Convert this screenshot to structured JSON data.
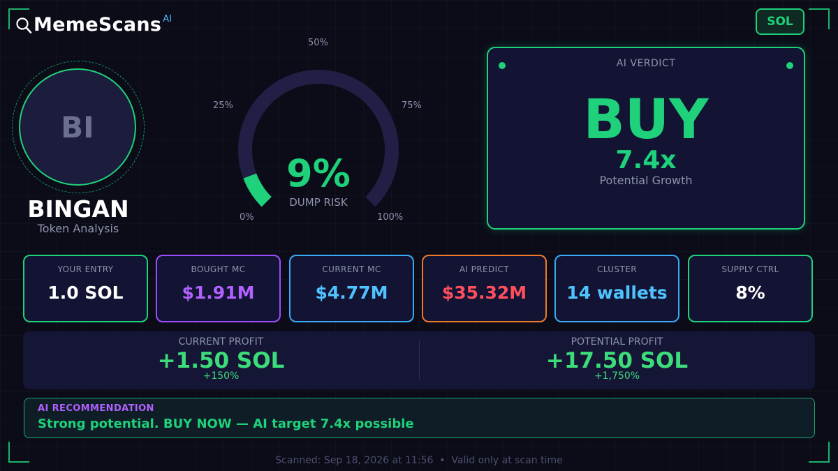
{
  "brand": {
    "name": "MemeScans",
    "suffix": "AI",
    "icon": "magnifier-icon"
  },
  "chain": "SOL",
  "token": {
    "initials": "BI",
    "name": "BINGAN",
    "subtitle": "Token Analysis"
  },
  "gauge": {
    "value_text": "9%",
    "value": 9,
    "label": "DUMP RISK",
    "ticks": [
      "0%",
      "25%",
      "50%",
      "75%",
      "100%"
    ],
    "fill_color": "#1fd17a",
    "track_color": "#211f45"
  },
  "verdict": {
    "label": "AI VERDICT",
    "value": "BUY",
    "multiplier": "7.4x",
    "subtitle": "Potential Growth"
  },
  "stats": [
    {
      "label": "YOUR ENTRY",
      "value": "1.0 SOL",
      "color": "#ffffff",
      "border": "#1fd17a"
    },
    {
      "label": "BOUGHT MC",
      "value": "$1.91M",
      "color": "#b061ff",
      "border": "#9c4dff"
    },
    {
      "label": "CURRENT MC",
      "value": "$4.77M",
      "color": "#4fc3ff",
      "border": "#3aa9f5"
    },
    {
      "label": "AI PREDICT",
      "value": "$35.32M",
      "color": "#ff4f5e",
      "border": "#f07a2a"
    },
    {
      "label": "CLUSTER",
      "value": "14 wallets",
      "color": "#4fc3ff",
      "border": "#3aa9f5"
    },
    {
      "label": "SUPPLY CTRL",
      "value": "8%",
      "color": "#ffffff",
      "border": "#1fd17a"
    }
  ],
  "profit": {
    "current": {
      "label": "CURRENT PROFIT",
      "value": "+1.50 SOL",
      "pct": "+150%"
    },
    "potential": {
      "label": "POTENTIAL PROFIT",
      "value": "+17.50 SOL",
      "pct": "+1,750%"
    }
  },
  "recommendation": {
    "label": "AI RECOMMENDATION",
    "text": "Strong potential. BUY NOW — AI target 7.4x possible"
  },
  "footer": "Scanned: Sep 18, 2026 at 11:56  •  Valid only at scan time"
}
